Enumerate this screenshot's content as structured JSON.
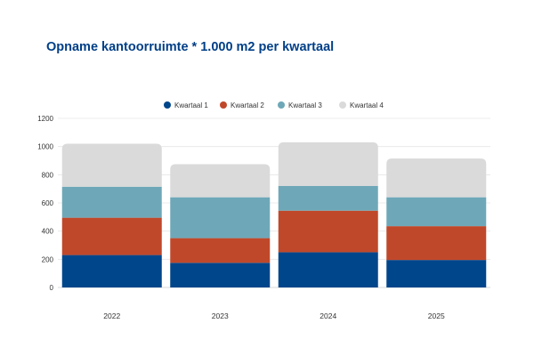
{
  "chart_data": {
    "type": "bar",
    "stacked": true,
    "title": "Opname kantoorruimte * 1.000 m2 per kwartaal",
    "categories": [
      "2022",
      "2023",
      "2024",
      "2025"
    ],
    "series": [
      {
        "name": "Kwartaal 1",
        "color": "#00468b",
        "values": [
          230,
          175,
          250,
          195
        ]
      },
      {
        "name": "Kwartaal 2",
        "color": "#c0482a",
        "values": [
          265,
          175,
          295,
          240
        ]
      },
      {
        "name": "Kwartaal 3",
        "color": "#6ea8b8",
        "values": [
          220,
          290,
          175,
          205
        ]
      },
      {
        "name": "Kwartaal 4",
        "color": "#dadada",
        "values": [
          305,
          235,
          310,
          275
        ]
      }
    ],
    "ylim": [
      0,
      1200
    ],
    "yticks": [
      0,
      200,
      400,
      600,
      800,
      1000,
      1200
    ],
    "grid": true,
    "legend": "top-center"
  }
}
